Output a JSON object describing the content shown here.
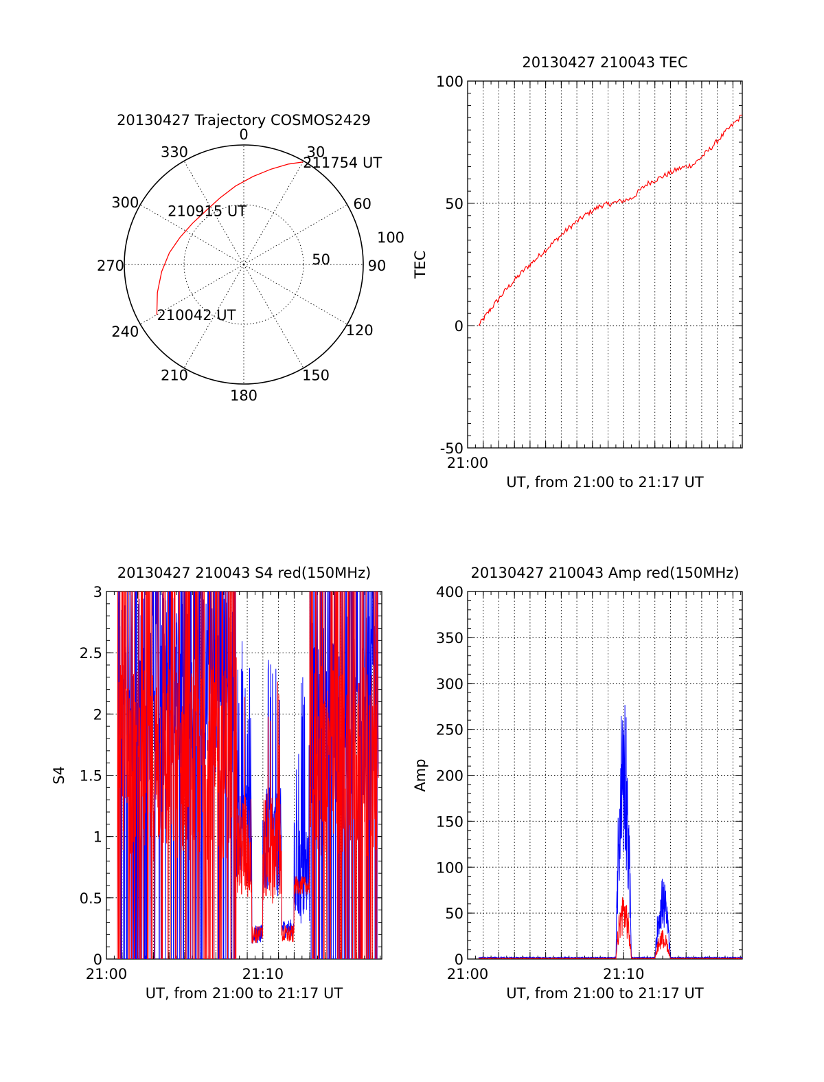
{
  "chart_data": [
    {
      "type": "polar",
      "title": "20130427 Trajectory COSMOS2429",
      "azimuth_labels": [
        "0",
        "30",
        "60",
        "90",
        "120",
        "150",
        "180",
        "210",
        "240",
        "270",
        "300",
        "330"
      ],
      "radius_labels": [
        "50",
        "100"
      ],
      "series": [
        {
          "color": "#ff0000",
          "points": [
            {
              "az": 240,
              "r": 84
            },
            {
              "az": 252,
              "r": 76
            },
            {
              "az": 265,
              "r": 69
            },
            {
              "az": 279,
              "r": 63
            },
            {
              "az": 293,
              "r": 58
            },
            {
              "az": 309,
              "r": 55
            },
            {
              "az": 325,
              "r": 55
            },
            {
              "az": 340,
              "r": 59
            },
            {
              "az": 354,
              "r": 66
            },
            {
              "az": 6,
              "r": 74
            },
            {
              "az": 16,
              "r": 83
            },
            {
              "az": 24,
              "r": 92
            },
            {
              "az": 30,
              "r": 99
            }
          ]
        }
      ],
      "annotations": [
        {
          "text": "211754 UT",
          "az": 30,
          "r": 99
        },
        {
          "text": "210915 UT",
          "az": 325,
          "r": 55
        },
        {
          "text": "210042 UT",
          "az": 240,
          "r": 84
        }
      ]
    },
    {
      "type": "line",
      "title": "20130427 210043 TEC",
      "xlabel": "UT, from 21:00 to 21:17 UT",
      "ylabel": "TEC",
      "xlim": [
        0,
        17.6
      ],
      "ylim": [
        -50,
        100
      ],
      "x_ticks": [
        {
          "value": 0,
          "label": "21:00"
        }
      ],
      "y_ticks": [
        {
          "value": -50,
          "label": "-50"
        },
        {
          "value": 0,
          "label": "0"
        },
        {
          "value": 50,
          "label": "50"
        },
        {
          "value": 100,
          "label": "100"
        }
      ],
      "grid": true,
      "series": [
        {
          "color": "#ff0000",
          "x": [
            0.7,
            1.5,
            2.5,
            3.5,
            4.5,
            5.5,
            6.5,
            7.5,
            8.5,
            9.3,
            10.5,
            11.5,
            12.5,
            13.5,
            14.5,
            15.5,
            16.5,
            17.6
          ],
          "y": [
            0,
            7,
            15,
            22,
            28,
            34,
            40,
            45,
            49,
            50,
            52,
            58,
            61,
            64,
            66,
            72,
            79,
            86
          ]
        }
      ]
    },
    {
      "type": "line",
      "title": "20130427 210043 S4 red(150MHz)",
      "xlabel": "UT, from 21:00 to 21:17 UT",
      "ylabel": "S4",
      "xlim": [
        0,
        17.6
      ],
      "ylim": [
        0,
        3
      ],
      "x_ticks": [
        {
          "value": 0,
          "label": "21:00"
        },
        {
          "value": 10,
          "label": "21:10"
        }
      ],
      "y_ticks": [
        {
          "value": 0,
          "label": "0"
        },
        {
          "value": 0.5,
          "label": "0.5"
        },
        {
          "value": 1,
          "label": "1"
        },
        {
          "value": 1.5,
          "label": "1.5"
        },
        {
          "value": 2,
          "label": "2"
        },
        {
          "value": 2.5,
          "label": "2.5"
        },
        {
          "value": 3,
          "label": "3"
        }
      ],
      "grid": true,
      "series": [
        {
          "color": "#0000ff",
          "segments": [
            [
              0.7,
              8.3,
              2.2
            ],
            [
              8.3,
              9.3,
              1.05
            ],
            [
              9.3,
              10.0,
              0.2
            ],
            [
              10.0,
              11.2,
              0.95
            ],
            [
              11.2,
              12.0,
              0.25
            ],
            [
              12.0,
              13.0,
              0.7
            ],
            [
              13.0,
              17.4,
              2.0
            ]
          ]
        },
        {
          "color": "#ff0000",
          "segments": [
            [
              0.7,
              8.3,
              1.6
            ],
            [
              8.3,
              9.3,
              0.9
            ],
            [
              9.3,
              10.0,
              0.2
            ],
            [
              10.0,
              11.2,
              0.9
            ],
            [
              11.2,
              12.0,
              0.2
            ],
            [
              12.0,
              13.0,
              0.6
            ],
            [
              13.0,
              17.4,
              1.6
            ]
          ]
        }
      ]
    },
    {
      "type": "line",
      "title": "20130427 210043 Amp red(150MHz)",
      "xlabel": "UT, from 21:00 to 21:17 UT",
      "ylabel": "Amp",
      "xlim": [
        0,
        17.6
      ],
      "ylim": [
        0,
        400
      ],
      "x_ticks": [
        {
          "value": 0,
          "label": "21:00"
        },
        {
          "value": 10,
          "label": "21:10"
        }
      ],
      "y_ticks": [
        {
          "value": 0,
          "label": "0"
        },
        {
          "value": 50,
          "label": "50"
        },
        {
          "value": 100,
          "label": "100"
        },
        {
          "value": 150,
          "label": "150"
        },
        {
          "value": 200,
          "label": "200"
        },
        {
          "value": 250,
          "label": "250"
        },
        {
          "value": 300,
          "label": "300"
        },
        {
          "value": 350,
          "label": "350"
        },
        {
          "value": 400,
          "label": "400"
        }
      ],
      "grid": true,
      "series": [
        {
          "color": "#0000ff",
          "bursts": [
            [
              9.5,
              10.5,
              310
            ],
            [
              12.0,
              13.0,
              90
            ]
          ],
          "baseline": 1
        },
        {
          "color": "#ff0000",
          "bursts": [
            [
              9.5,
              10.5,
              75
            ],
            [
              12.0,
              13.0,
              32
            ]
          ],
          "baseline": 0.5
        }
      ]
    }
  ]
}
